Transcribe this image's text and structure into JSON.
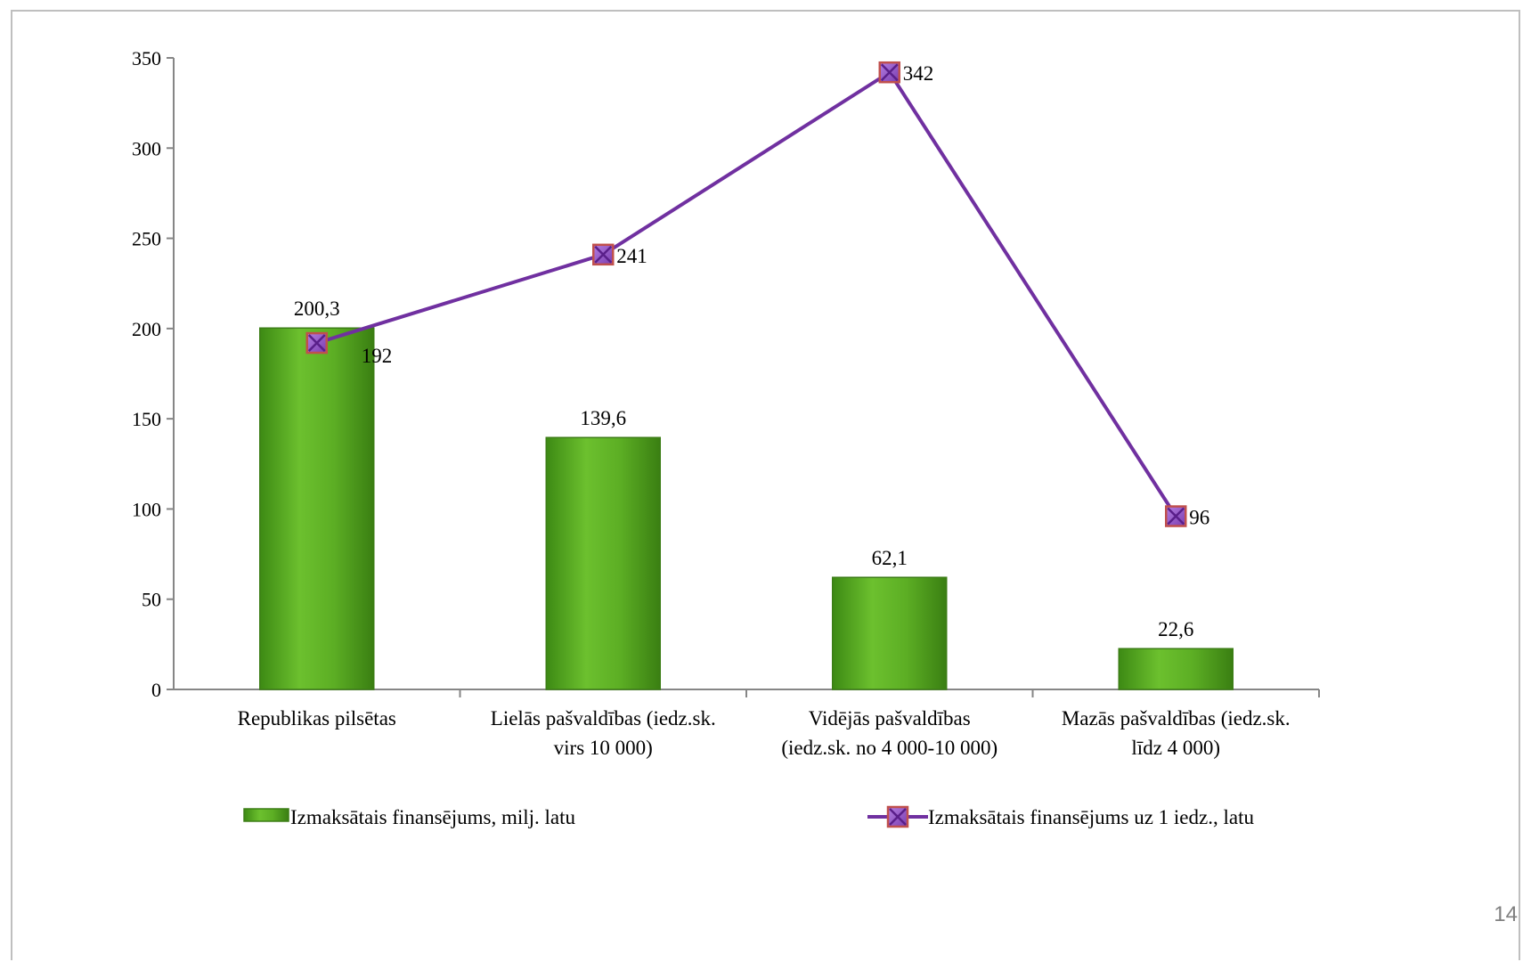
{
  "chart_data": {
    "type": "bar",
    "categories": [
      "Republikas pilsētas",
      "Lielās pašvaldības (iedz.sk. virs 10 000)",
      "Vidējās pašvaldības (iedz.sk. no 4 000-10 000)",
      "Mazās pašvaldības (iedz.sk. līdz 4 000)"
    ],
    "category_lines": [
      [
        "Republikas pilsētas"
      ],
      [
        "Lielās pašvaldības (iedz.sk.",
        "virs 10 000)"
      ],
      [
        "Vidējās pašvaldības",
        "(iedz.sk. no 4 000-10 000)"
      ],
      [
        "Mazās pašvaldības (iedz.sk.",
        "līdz 4 000)"
      ]
    ],
    "series": [
      {
        "name": "Izmaksātais finansējums, milj. latu",
        "type": "bar",
        "values": [
          200.3,
          139.6,
          62.1,
          22.6
        ],
        "labels": [
          "200,3",
          "139,6",
          "62,1",
          "22,6"
        ],
        "color": "#5aa822"
      },
      {
        "name": "Izmaksātais finansējums uz 1 iedz., latu",
        "type": "line",
        "values": [
          192,
          241,
          342,
          96
        ],
        "labels": [
          "192",
          "241",
          "342",
          "96"
        ],
        "color": "#7030a0",
        "marker_color": "#9b59d0",
        "marker_edge": "#c0504d"
      }
    ],
    "y_ticks": [
      "0",
      "50",
      "100",
      "150",
      "200",
      "250",
      "300",
      "350"
    ],
    "ylim": [
      0,
      350
    ],
    "grid": false,
    "legend_position": "bottom"
  },
  "page_number": "14"
}
